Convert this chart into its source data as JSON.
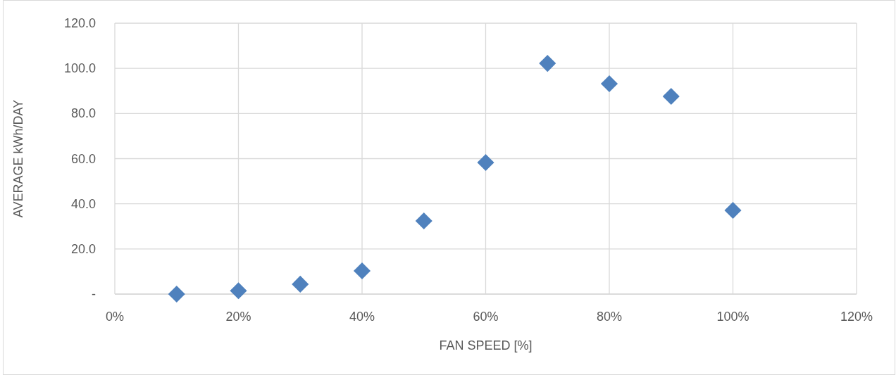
{
  "chart_data": {
    "type": "scatter",
    "xlabel": "FAN SPEED [%]",
    "ylabel": "AVERAGE kWh/DAY",
    "x": [
      10,
      20,
      30,
      40,
      50,
      60,
      70,
      80,
      90,
      100
    ],
    "series": [
      {
        "color": "#4f81bd",
        "values": [
          0.0,
          1.5,
          4.4,
          10.3,
          32.4,
          58.3,
          102.2,
          93.2,
          87.6,
          37.1
        ]
      }
    ],
    "xlim": [
      0,
      120
    ],
    "xticks": [
      {
        "value": 0,
        "label": "0%"
      },
      {
        "value": 20,
        "label": "20%"
      },
      {
        "value": 40,
        "label": "40%"
      },
      {
        "value": 60,
        "label": "60%"
      },
      {
        "value": 80,
        "label": "80%"
      },
      {
        "value": 100,
        "label": "100%"
      },
      {
        "value": 120,
        "label": "120%"
      }
    ],
    "ylim": [
      0,
      120
    ],
    "yticks": [
      {
        "value": 0,
        "label": "-"
      },
      {
        "value": 20,
        "label": "20.0"
      },
      {
        "value": 40,
        "label": "40.0"
      },
      {
        "value": 60,
        "label": "60.0"
      },
      {
        "value": 80,
        "label": "80.0"
      },
      {
        "value": 100,
        "label": "100.0"
      },
      {
        "value": 120,
        "label": "120.0"
      }
    ],
    "grid": true,
    "marker": "diamond"
  }
}
